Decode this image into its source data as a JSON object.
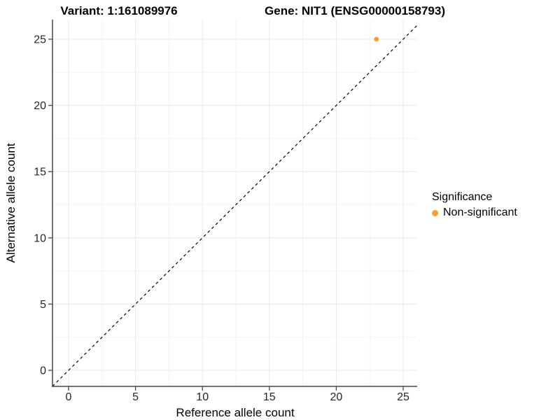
{
  "titles": {
    "variant": "Variant: 1:161089976",
    "gene": "Gene: NIT1 (ENSG00000158793)"
  },
  "legend": {
    "title": "Significance",
    "items": [
      {
        "label": "Non-significant",
        "color": "#F99E2E"
      }
    ]
  },
  "chart_data": {
    "type": "scatter",
    "title": "Variant: 1:161089976   Gene: NIT1 (ENSG00000158793)",
    "xlabel": "Reference allele count",
    "ylabel": "Alternative allele count",
    "xlim": [
      -1.25,
      26.25
    ],
    "ylim": [
      -1.25,
      26.25
    ],
    "x_ticks": [
      0,
      5,
      10,
      15,
      20,
      25
    ],
    "y_ticks": [
      0,
      5,
      10,
      15,
      20,
      25
    ],
    "x_minor": [
      2.5,
      7.5,
      12.5,
      17.5,
      22.5
    ],
    "y_minor": [
      2.5,
      7.5,
      12.5,
      17.5,
      22.5
    ],
    "series": [
      {
        "name": "Non-significant",
        "color": "#F99E2E",
        "points": [
          {
            "x": 23,
            "y": 25
          }
        ]
      }
    ],
    "reference_line": {
      "type": "identity y=x",
      "style": "dashed",
      "color": "#000000"
    },
    "grid": {
      "major_color": "#E7E7E7",
      "minor_color": "#F2F2F2",
      "background": "#FFFFFF"
    },
    "axis_color": "#474747",
    "legend_position": "right"
  }
}
